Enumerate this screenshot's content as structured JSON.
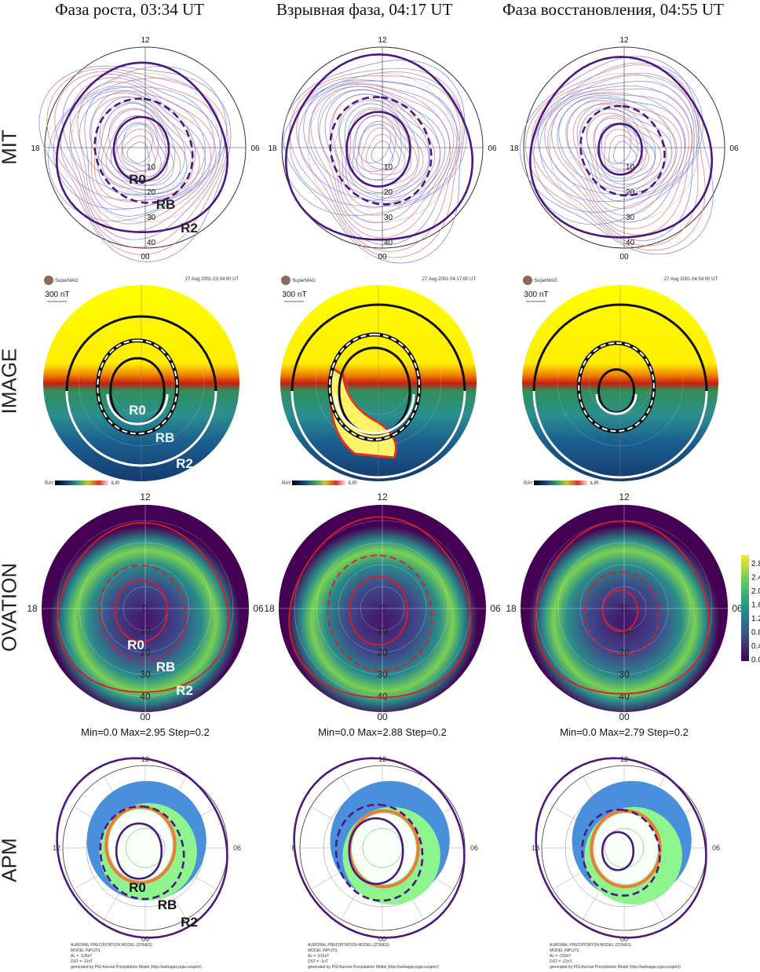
{
  "columns": [
    {
      "title": "Фаза роста, 03:34 UT"
    },
    {
      "title": "Взрывная фаза, 04:17 UT"
    },
    {
      "title": "Фаза восстановления, 04:55 UT"
    }
  ],
  "rows": [
    {
      "label": "MIT"
    },
    {
      "label": "IMAGE"
    },
    {
      "label": "OVATION"
    },
    {
      "label": "APM"
    }
  ],
  "dial": {
    "top": "12",
    "left": "18",
    "right": "06",
    "bottom": "00"
  },
  "rings": [
    "0",
    "10",
    "20",
    "30",
    "40"
  ],
  "mit_rings": [
    "10",
    "20",
    "30",
    "40"
  ],
  "boundaries": {
    "r0": "R0",
    "rb": "RB",
    "r2": "R2"
  },
  "image_panels": [
    {
      "timestamp": "27 Aug 2001 03:34:00 UT",
      "scale": "300 nT",
      "logo": "SuperMAG",
      "colorbar_min": "RAY",
      "colorbar_max": "ILIR"
    },
    {
      "timestamp": "27 Aug 2001 04:17:00 UT",
      "scale": "300 nT",
      "logo": "SuperMAG",
      "colorbar_min": "RAY",
      "colorbar_max": "ILIR"
    },
    {
      "timestamp": "27 Aug 2001 04:54:00 UT",
      "scale": "300 nT",
      "logo": "SuperMAG",
      "colorbar_min": "RAY",
      "colorbar_max": "ILIR"
    }
  ],
  "ovation_stats": [
    "Min=0.0  Max=2.95  Step=0.2",
    "Min=0.0  Max=2.88  Step=0.2",
    "Min=0.0  Max=2.79  Step=0.2"
  ],
  "colorbar_ticks": [
    "2.8",
    "2.4",
    "2.0",
    "1.6",
    "1.2",
    "0.8",
    "0.4",
    "0.0"
  ],
  "apm_left_labels": [
    "12",
    "8",
    "18"
  ],
  "apm_footer": [
    [
      "AURORAL PRECIPITATION MODEL (ZONES)",
      "MODEL INPUTS:",
      "AL = -125nT",
      "DST = -11nT",
      "generated by PGI Auroral Precipitation Model (http://webapps.pgia.ru/apm/)"
    ],
    [
      "AURORAL PRECIPITATION MODEL (ZONES)",
      "MODEL INPUTS:",
      "AL = -515nT",
      "DST = -1nT",
      "generated by PGI Auroral Precipitation Model (http://webapps.pgia.ru/apm/)"
    ],
    [
      "AURORAL PRECIPITATION MODEL (ZONES)",
      "MODEL INPUTS:",
      "AL = -230nT",
      "DST = -12nT",
      "generated by PGI Auroral Precipitation Model (http://webapps.pgia.ru/apm/)"
    ]
  ],
  "colors": {
    "r_boundary_mit": "#4b1880",
    "r_boundary_ovation": "#e01b1b",
    "mit_positive": "#e07070",
    "mit_negative": "#6f78e0",
    "apm_blue": "#4a8fdc",
    "apm_green": "#8ef58e",
    "apm_orange": "#f07a3c"
  }
}
